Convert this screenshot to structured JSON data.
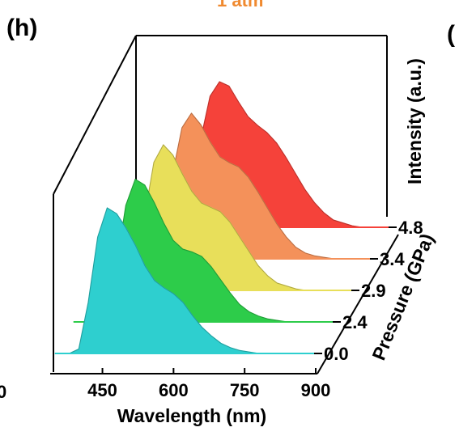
{
  "panel_label": "(h)",
  "right_panel_fragment": "(",
  "left_edge_fragment": "0",
  "top_title_fragment": "1 atm",
  "chart_data": {
    "type": "area",
    "title": "",
    "xlabel": "Wavelength (nm)",
    "ylabel": "Intensity (a.u.)",
    "zlabel": "Pressure (GPa)",
    "xlim": [
      350,
      900
    ],
    "x_ticks": [
      "450",
      "600",
      "750",
      "900"
    ],
    "x_tick_values": [
      450,
      600,
      750,
      900
    ],
    "z_ticks": [
      "0.0",
      "2.4",
      "2.9",
      "3.4",
      "4.8"
    ],
    "grid": false,
    "x": [
      380,
      400,
      420,
      440,
      460,
      480,
      500,
      520,
      540,
      560,
      580,
      600,
      620,
      640,
      660,
      680,
      700,
      720,
      740,
      760,
      780,
      800,
      820,
      840,
      860,
      880,
      900
    ],
    "series": [
      {
        "pressure": "0.0",
        "color": "#2ecfcf",
        "values": [
          0.0,
          0.03,
          0.35,
          0.8,
          1.0,
          0.96,
          0.86,
          0.74,
          0.6,
          0.5,
          0.45,
          0.41,
          0.35,
          0.26,
          0.18,
          0.12,
          0.07,
          0.04,
          0.02,
          0.01,
          0.0,
          0.0,
          0.0,
          0.0,
          0.0,
          0.0,
          0.0
        ]
      },
      {
        "pressure": "2.4",
        "color": "#2dcc4a",
        "values": [
          0.0,
          0.01,
          0.06,
          0.38,
          0.8,
          0.98,
          0.94,
          0.82,
          0.68,
          0.56,
          0.5,
          0.48,
          0.45,
          0.38,
          0.29,
          0.2,
          0.12,
          0.07,
          0.04,
          0.02,
          0.01,
          0.0,
          0.0,
          0.0,
          0.0,
          0.0,
          0.0
        ]
      },
      {
        "pressure": "2.9",
        "color": "#e8df5a",
        "values": [
          0.0,
          0.0,
          0.02,
          0.12,
          0.5,
          0.88,
          1.0,
          0.93,
          0.8,
          0.68,
          0.6,
          0.57,
          0.54,
          0.47,
          0.37,
          0.27,
          0.17,
          0.1,
          0.05,
          0.03,
          0.01,
          0.0,
          0.0,
          0.0,
          0.0,
          0.0,
          0.0
        ]
      },
      {
        "pressure": "3.4",
        "color": "#f4915a",
        "values": [
          0.0,
          0.0,
          0.0,
          0.04,
          0.2,
          0.58,
          0.9,
          1.0,
          0.92,
          0.8,
          0.7,
          0.66,
          0.63,
          0.56,
          0.46,
          0.35,
          0.24,
          0.15,
          0.08,
          0.04,
          0.02,
          0.01,
          0.0,
          0.0,
          0.0,
          0.0,
          0.0
        ]
      },
      {
        "pressure": "4.8",
        "color": "#f5423a",
        "values": [
          0.0,
          0.0,
          0.0,
          0.0,
          0.06,
          0.25,
          0.6,
          0.9,
          1.0,
          0.97,
          0.86,
          0.76,
          0.7,
          0.65,
          0.58,
          0.48,
          0.37,
          0.26,
          0.17,
          0.1,
          0.05,
          0.03,
          0.01,
          0.0,
          0.0,
          0.0,
          0.0
        ]
      }
    ]
  }
}
